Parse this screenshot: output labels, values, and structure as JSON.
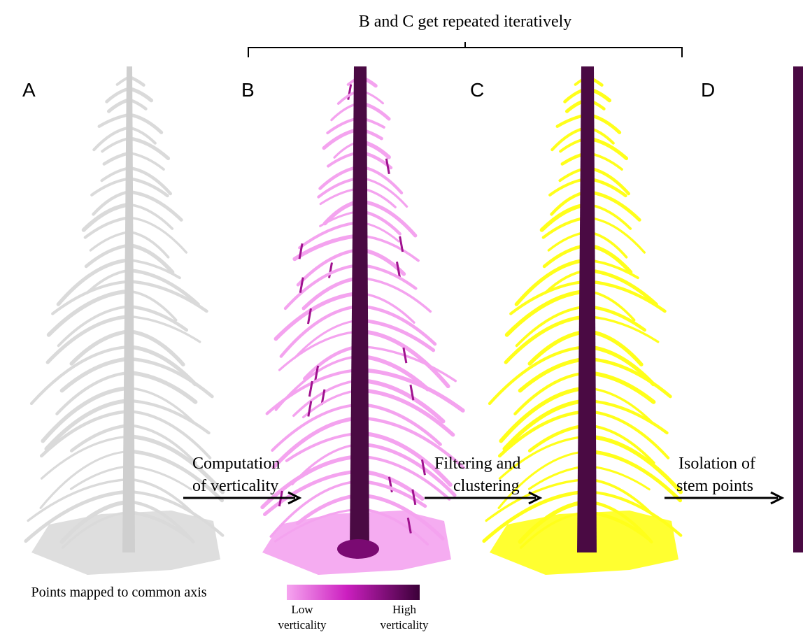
{
  "header": {
    "title": "B and C get repeated iteratively"
  },
  "panels": [
    {
      "label": "A"
    },
    {
      "label": "B"
    },
    {
      "label": "C"
    },
    {
      "label": "D"
    }
  ],
  "steps": [
    {
      "lines": [
        "Computation",
        "of verticality"
      ]
    },
    {
      "lines": [
        "Filtering and",
        "clustering"
      ]
    },
    {
      "lines": [
        "Isolation of",
        "stem points"
      ]
    }
  ],
  "caption": "Points mapped to common axis",
  "legend": {
    "low": [
      "Low",
      "verticality"
    ],
    "high": [
      "High",
      "verticality"
    ]
  }
}
